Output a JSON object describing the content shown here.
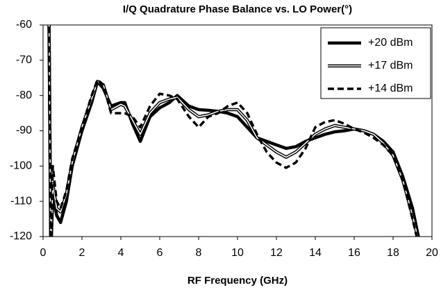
{
  "chart_data": {
    "type": "line",
    "title": "I/Q Quadrature Phase Balance vs. LO Power(°)",
    "xlabel": "RF Frequency (GHz)",
    "x": [
      0.3,
      0.4,
      0.5,
      0.7,
      0.9,
      1.2,
      1.5,
      2,
      2.5,
      2.8,
      3.1,
      3.5,
      4,
      4.2,
      4.6,
      5,
      5.5,
      6,
      6.5,
      6.9,
      7.5,
      8,
      8.5,
      9,
      9.5,
      10,
      10.5,
      11,
      11.5,
      12,
      12.5,
      13,
      13.5,
      14,
      14.5,
      15,
      15.5,
      16,
      16.5,
      17,
      17.5,
      18,
      18.5,
      19,
      19.3
    ],
    "series": [
      {
        "name": "+20 dBm",
        "color": "#000000",
        "style": "solid",
        "values": [
          -55,
          -125,
          -108,
          -114,
          -116,
          -110,
          -100,
          -90,
          -82,
          -76,
          -78,
          -83,
          -82,
          -82,
          -88,
          -93,
          -86,
          -83.5,
          -82,
          -80,
          -83,
          -84,
          -84.2,
          -84.5,
          -85,
          -86,
          -89,
          -92,
          -93,
          -94,
          -95,
          -94.5,
          -93,
          -92,
          -91,
          -90.3,
          -90,
          -89.5,
          -90,
          -91,
          -93,
          -96,
          -103,
          -112,
          -120
        ]
      },
      {
        "name": "+17 dBm",
        "color": "#000000",
        "style": "double",
        "values": [
          -55,
          -125,
          -105,
          -112,
          -113,
          -108,
          -99,
          -89,
          -81,
          -76,
          -77,
          -84,
          -82.5,
          -83,
          -87,
          -91,
          -85,
          -82,
          -81,
          -80.5,
          -84,
          -86,
          -85.5,
          -84.5,
          -84,
          -84,
          -87,
          -92,
          -94,
          -96,
          -97.5,
          -96,
          -93.5,
          -91,
          -89.5,
          -88.5,
          -89,
          -89.5,
          -90,
          -91,
          -93.5,
          -97,
          -104,
          -114,
          -121
        ]
      },
      {
        "name": "+14 dBm",
        "color": "#000000",
        "style": "dashed",
        "values": [
          -55,
          -125,
          -100,
          -110,
          -112,
          -107,
          -98,
          -89,
          -80,
          -75.5,
          -77,
          -85,
          -85,
          -85,
          -86,
          -89,
          -83,
          -79.5,
          -80,
          -81,
          -86,
          -89,
          -86,
          -85,
          -83,
          -82,
          -85,
          -91,
          -96,
          -99,
          -100.5,
          -99,
          -95,
          -89,
          -87.5,
          -87,
          -88,
          -89.5,
          -90.5,
          -92,
          -94,
          -97,
          -104,
          -115,
          -122
        ]
      }
    ],
    "xlim": [
      0,
      20
    ],
    "xticks": [
      0,
      2,
      4,
      6,
      8,
      10,
      12,
      14,
      16,
      18,
      20
    ],
    "ylim": [
      -120,
      -60
    ],
    "yticks": [
      -60,
      -70,
      -80,
      -90,
      -100,
      -110,
      -120
    ],
    "grid": false,
    "legend": "upper right"
  }
}
